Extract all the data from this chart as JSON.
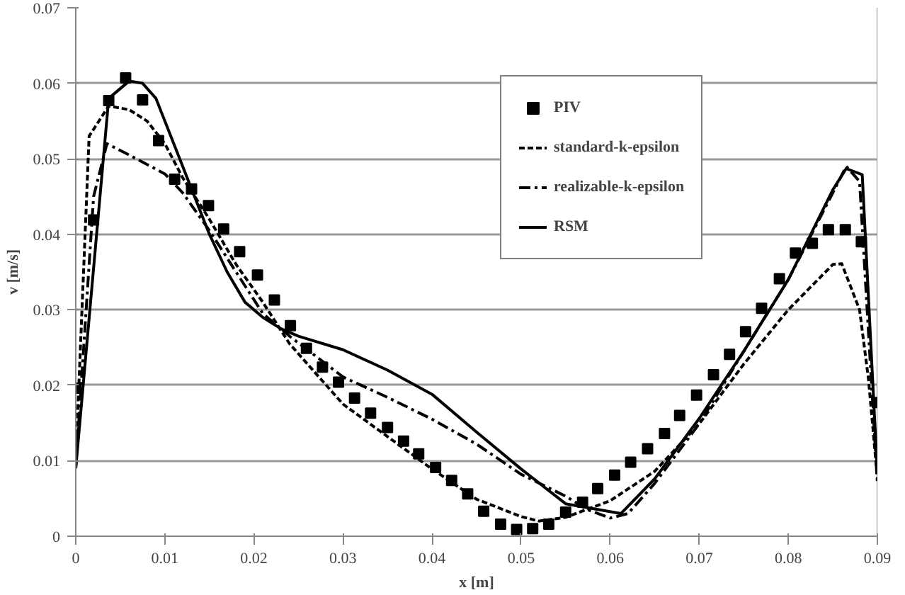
{
  "chart_data": {
    "type": "line",
    "xlabel": "x [m]",
    "ylabel": "v [m/s]",
    "xlim": [
      0,
      0.09
    ],
    "ylim": [
      0,
      0.07
    ],
    "xticks": [
      0,
      0.01,
      0.02,
      0.03,
      0.04,
      0.05,
      0.06,
      0.07,
      0.08,
      0.09
    ],
    "yticks": [
      0,
      0.01,
      0.02,
      0.03,
      0.04,
      0.05,
      0.06,
      0.07
    ],
    "grid": "y",
    "legend": "top",
    "series": [
      {
        "name": "PIV",
        "type": "scatter",
        "marker": "square",
        "color": "#000000",
        "x": [
          0,
          0.002,
          0.0037,
          0.0056,
          0.0075,
          0.0093,
          0.0111,
          0.013,
          0.0149,
          0.0166,
          0.0184,
          0.0204,
          0.0223,
          0.0241,
          0.0259,
          0.0277,
          0.0295,
          0.0313,
          0.0331,
          0.035,
          0.0368,
          0.0385,
          0.0404,
          0.0422,
          0.044,
          0.0458,
          0.0477,
          0.0495,
          0.0513,
          0.0531,
          0.055,
          0.0569,
          0.0586,
          0.0605,
          0.0623,
          0.0642,
          0.0661,
          0.0678,
          0.0697,
          0.0716,
          0.0734,
          0.0752,
          0.077,
          0.079,
          0.0808,
          0.0827,
          0.0845,
          0.0864,
          0.0882,
          0.09
        ],
        "values": [
          0.0196,
          0.0419,
          0.0577,
          0.0607,
          0.0578,
          0.0524,
          0.0473,
          0.046,
          0.0438,
          0.0407,
          0.0377,
          0.0346,
          0.0313,
          0.0279,
          0.0249,
          0.0224,
          0.0204,
          0.0183,
          0.0163,
          0.0144,
          0.0126,
          0.0109,
          0.0091,
          0.0074,
          0.0056,
          0.0033,
          0.0016,
          0.0009,
          0.001,
          0.0016,
          0.0032,
          0.0045,
          0.0063,
          0.0081,
          0.0098,
          0.0116,
          0.0136,
          0.016,
          0.0187,
          0.0214,
          0.0241,
          0.0271,
          0.0302,
          0.0341,
          0.0375,
          0.0388,
          0.0406,
          0.0406,
          0.039,
          0.0177
        ]
      },
      {
        "name": "standard-k-epsilon",
        "line_style": "dashed",
        "color": "#000000",
        "x": [
          0,
          0.0015,
          0.0037,
          0.006,
          0.008,
          0.01,
          0.012,
          0.015,
          0.018,
          0.021,
          0.024,
          0.03,
          0.035,
          0.04,
          0.045,
          0.05,
          0.052,
          0.055,
          0.06,
          0.065,
          0.07,
          0.075,
          0.08,
          0.085,
          0.086,
          0.088,
          0.089,
          0.09
        ],
        "values": [
          0.01,
          0.053,
          0.057,
          0.0565,
          0.055,
          0.052,
          0.0475,
          0.042,
          0.036,
          0.031,
          0.0255,
          0.0175,
          0.0132,
          0.0089,
          0.0049,
          0.0026,
          0.002,
          0.0025,
          0.0047,
          0.0086,
          0.0149,
          0.0228,
          0.03,
          0.036,
          0.0361,
          0.03,
          0.0208,
          0.0077
        ]
      },
      {
        "name": "realizable-k-epsilon",
        "line_style": "dashdot",
        "color": "#000000",
        "x": [
          0,
          0.002,
          0.0035,
          0.006,
          0.01,
          0.012,
          0.015,
          0.018,
          0.021,
          0.024,
          0.03,
          0.035,
          0.04,
          0.045,
          0.05,
          0.055,
          0.0575,
          0.06,
          0.062,
          0.065,
          0.07,
          0.075,
          0.08,
          0.085,
          0.0865,
          0.088,
          0.09
        ],
        "values": [
          0.009,
          0.045,
          0.052,
          0.0505,
          0.048,
          0.0455,
          0.0405,
          0.035,
          0.0295,
          0.0265,
          0.0211,
          0.0184,
          0.0155,
          0.0122,
          0.0082,
          0.0053,
          0.0035,
          0.0024,
          0.003,
          0.007,
          0.0149,
          0.0245,
          0.034,
          0.0455,
          0.049,
          0.047,
          0.007
        ]
      },
      {
        "name": "RSM",
        "line_style": "solid",
        "color": "#000000",
        "x": [
          0,
          0.0037,
          0.006,
          0.0075,
          0.009,
          0.011,
          0.013,
          0.015,
          0.017,
          0.019,
          0.021,
          0.023,
          0.025,
          0.03,
          0.035,
          0.04,
          0.045,
          0.05,
          0.055,
          0.0612,
          0.065,
          0.07,
          0.075,
          0.08,
          0.085,
          0.0865,
          0.0883,
          0.09
        ],
        "values": [
          0.009,
          0.058,
          0.0603,
          0.06,
          0.058,
          0.052,
          0.046,
          0.04,
          0.035,
          0.031,
          0.029,
          0.0275,
          0.0265,
          0.0247,
          0.022,
          0.0188,
          0.0138,
          0.0089,
          0.0043,
          0.003,
          0.0076,
          0.0156,
          0.0245,
          0.034,
          0.0459,
          0.0487,
          0.0479,
          0.0083
        ]
      }
    ]
  }
}
